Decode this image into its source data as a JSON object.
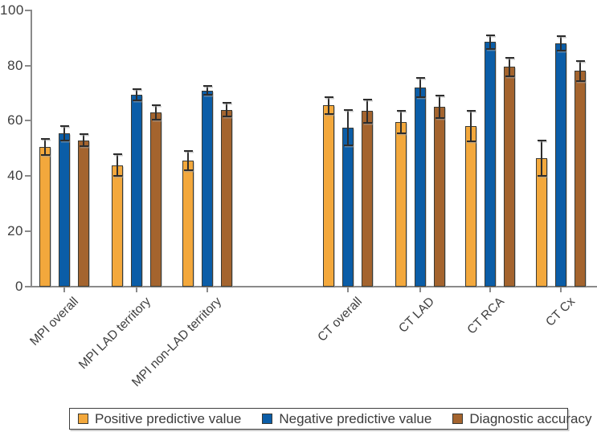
{
  "chart_data": {
    "type": "bar",
    "title": "",
    "xlabel": "",
    "ylabel": "",
    "ylim": [
      0,
      100
    ],
    "yticks": [
      0,
      20,
      40,
      60,
      80,
      100
    ],
    "grid": false,
    "legend_position": "bottom",
    "error_bars": true,
    "categories": [
      "MPI overall",
      "MPI LAD territory",
      "MPI non-LAD territory",
      "CT overall",
      "CT LAD",
      "CT RCA",
      "CT Cx"
    ],
    "category_sections": {
      "MPI": [
        0,
        2
      ],
      "CT": [
        3,
        6
      ],
      "gap_after_index": 2
    },
    "series": [
      {
        "name": "Positive predictive value",
        "color": "#F3A83C",
        "values": [
          50.5,
          44,
          45.5,
          65.5,
          59.5,
          58,
          46.5
        ],
        "errors": [
          2.8,
          4,
          3.5,
          3,
          4,
          5.5,
          6.5
        ]
      },
      {
        "name": "Negative predictive value",
        "color": "#0B5DA7",
        "values": [
          55.5,
          69.5,
          71,
          57.5,
          72,
          88.5,
          88
        ],
        "errors": [
          2.5,
          2,
          1.7,
          6.3,
          3.5,
          2.5,
          2.5
        ]
      },
      {
        "name": "Diagnostic accuracy",
        "color": "#A4642E",
        "values": [
          53,
          63,
          64,
          63.5,
          65,
          79.5,
          78
        ],
        "errors": [
          2.3,
          2.5,
          2.4,
          4.3,
          4,
          3.3,
          3.6
        ]
      }
    ]
  },
  "legend": {
    "items": [
      {
        "label": "Positive predictive value",
        "color": "#F3A83C"
      },
      {
        "label": "Negative predictive value",
        "color": "#0B5DA7"
      },
      {
        "label": "Diagnostic accuracy",
        "color": "#A4642E"
      }
    ]
  },
  "style_colors": {
    "axis": "#8a8a8a",
    "text": "#3e3e3e",
    "error_bar": "#2d2d2d",
    "bar_outline": "#3a3a33",
    "background": "#ffffff"
  }
}
